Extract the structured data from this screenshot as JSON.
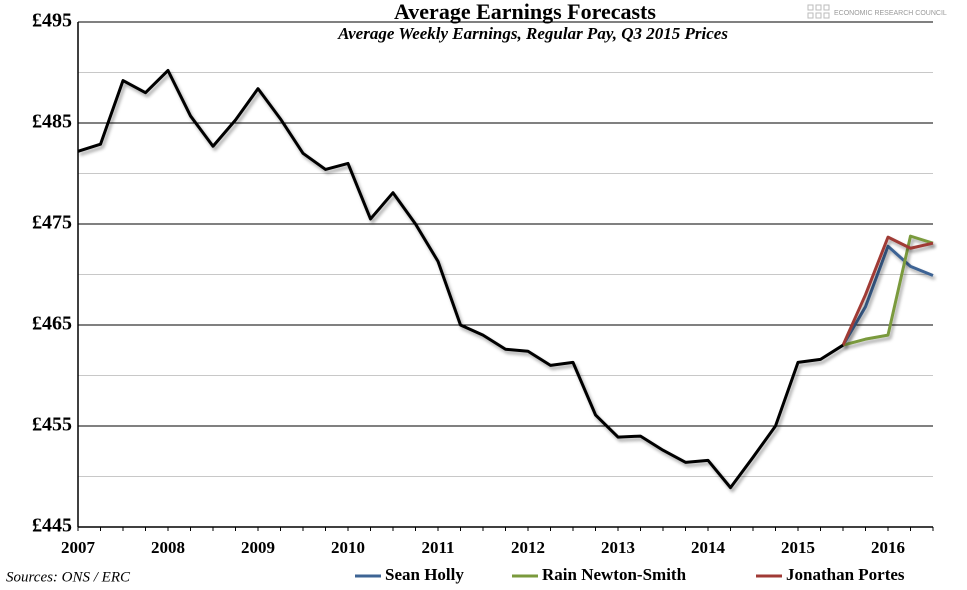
{
  "chart_data": {
    "type": "line",
    "title": "Average Earnings Forecasts",
    "subtitle": "Average Weekly Earnings, Regular Pay, Q3 2015 Prices",
    "source": "Sources: ONS / ERC",
    "logo": "ECONOMIC RESEARCH COUNCIL",
    "categories": [
      "2007",
      null,
      null,
      null,
      "2008",
      null,
      null,
      null,
      "2009",
      null,
      null,
      null,
      "2010",
      null,
      null,
      null,
      "2011",
      null,
      null,
      null,
      "2012",
      null,
      null,
      null,
      "2013",
      null,
      null,
      null,
      "2014",
      null,
      null,
      null,
      "2015",
      null,
      null,
      null,
      "2016",
      null,
      null
    ],
    "series": [
      {
        "name": "Sean Holly",
        "color": "#3e6494",
        "values": [
          null,
          null,
          null,
          null,
          null,
          null,
          null,
          null,
          null,
          null,
          null,
          null,
          null,
          null,
          null,
          null,
          null,
          null,
          null,
          null,
          null,
          null,
          null,
          null,
          null,
          null,
          null,
          null,
          null,
          null,
          null,
          null,
          null,
          null,
          463,
          466.8,
          472.8,
          470.8,
          469.9
        ]
      },
      {
        "name": "Rain Newton-Smith",
        "color": "#7a9a3c",
        "values": [
          null,
          null,
          null,
          null,
          null,
          null,
          null,
          null,
          null,
          null,
          null,
          null,
          null,
          null,
          null,
          null,
          null,
          null,
          null,
          null,
          null,
          null,
          null,
          null,
          null,
          null,
          null,
          null,
          null,
          null,
          null,
          null,
          null,
          null,
          463,
          463.6,
          464,
          473.8,
          473.1
        ]
      },
      {
        "name": "Jonathan Portes",
        "color": "#a03a35",
        "values": [
          null,
          null,
          null,
          null,
          null,
          null,
          null,
          null,
          null,
          null,
          null,
          null,
          null,
          null,
          null,
          null,
          null,
          null,
          null,
          null,
          null,
          null,
          null,
          null,
          null,
          null,
          null,
          null,
          null,
          null,
          null,
          null,
          null,
          null,
          463,
          468,
          473.7,
          472.6,
          473.1
        ]
      },
      {
        "color": "#000000",
        "values": [
          482.2,
          482.9,
          489.2,
          488,
          490.2,
          485.7,
          482.7,
          485.3,
          488.4,
          485.4,
          482,
          480.4,
          481,
          475.5,
          478.1,
          475,
          471.3,
          465,
          464,
          462.6,
          462.4,
          461,
          461.3,
          456.1,
          453.9,
          454,
          452.6,
          451.4,
          451.6,
          448.9,
          451.9,
          455,
          461.3,
          461.6,
          463,
          null,
          null,
          null,
          null
        ]
      }
    ],
    "ylim": [
      445,
      495
    ],
    "yticks": [
      {
        "value": 445,
        "label": "£445"
      },
      {
        "value": 455,
        "label": "£455"
      },
      {
        "value": 465,
        "label": "£465"
      },
      {
        "value": 475,
        "label": "£475"
      },
      {
        "value": 485,
        "label": "£485"
      },
      {
        "value": 495,
        "label": "£495"
      }
    ],
    "minor_yticks": [
      450,
      460,
      470,
      480,
      490
    ],
    "grid": true,
    "legend": "bottom"
  }
}
